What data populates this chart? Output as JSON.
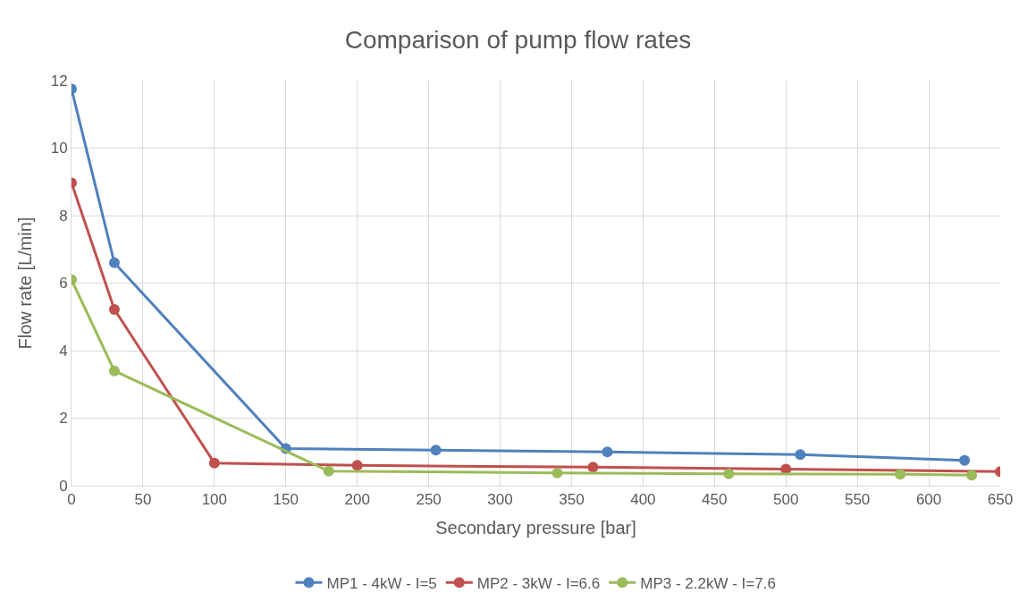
{
  "chart_data": {
    "type": "line",
    "title": "Comparison of pump flow rates",
    "xlabel": "Secondary pressure [bar]",
    "ylabel": "Flow rate [L/min]",
    "xlim": [
      0,
      650
    ],
    "xticks": [
      0,
      50,
      100,
      150,
      200,
      250,
      300,
      350,
      400,
      450,
      500,
      550,
      600,
      650
    ],
    "ylim": [
      0,
      12
    ],
    "yticks": [
      0,
      2,
      4,
      6,
      8,
      10,
      12
    ],
    "grid": true,
    "legend": "bottom",
    "marker": "circle",
    "line_style": "solid",
    "series": [
      {
        "name": "MP1 - 4kW - I=5",
        "color": "#4f81bd",
        "x": [
          0,
          30,
          150,
          255,
          375,
          510,
          625
        ],
        "values": [
          11.75,
          6.6,
          1.1,
          1.05,
          1.0,
          0.92,
          0.75
        ]
      },
      {
        "name": "MP2 - 3kW - I=6.6",
        "color": "#c0504d",
        "x": [
          0,
          30,
          100,
          200,
          365,
          500,
          650
        ],
        "values": [
          8.97,
          5.22,
          0.67,
          0.6,
          0.55,
          0.49,
          0.42
        ]
      },
      {
        "name": "MP3 - 2.2kW - I=7.6",
        "color": "#9bbb59",
        "x": [
          0,
          30,
          180,
          340,
          460,
          580,
          630
        ],
        "values": [
          6.1,
          3.4,
          0.43,
          0.38,
          0.35,
          0.34,
          0.31
        ]
      }
    ]
  }
}
